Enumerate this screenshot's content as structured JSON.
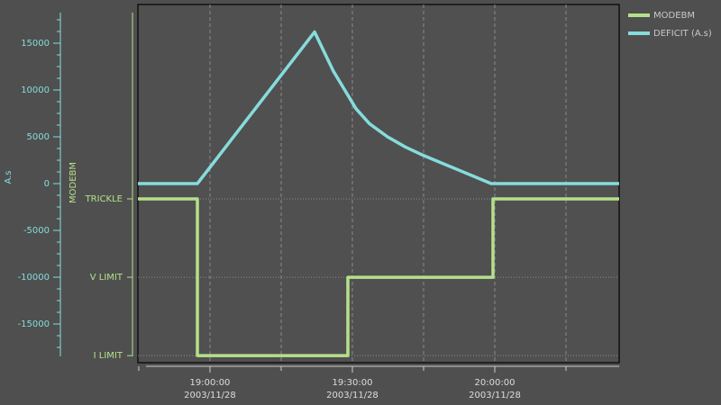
{
  "chart_data": {
    "type": "line",
    "ylabel": "A.s",
    "y2label": "MODEBM",
    "xlim": [
      "2003-11-28T18:44:49",
      "2003-11-28T20:26:12"
    ],
    "xticks": [
      {
        "value": "2003-11-28T19:00:00",
        "label": [
          "19:00:00",
          "2003/11/28"
        ]
      },
      {
        "value": "2003-11-28T19:30:00",
        "label": [
          "19:30:00",
          "2003/11/28"
        ]
      },
      {
        "value": "2003-11-28T20:00:00",
        "label": [
          "20:00:00",
          "2003/11/28"
        ]
      }
    ],
    "xminor_ticks": [
      "2003-11-28T18:45:00",
      "2003-11-28T19:15:00",
      "2003-11-28T19:45:00",
      "2003-11-28T20:15:00"
    ],
    "ylim": [
      -19135,
      19135
    ],
    "yticks": [
      15000,
      10000,
      5000,
      0,
      -5000,
      -10000,
      -15000
    ],
    "y2lim": [
      -0.09,
      4.48
    ],
    "y2ticks": [
      {
        "value": 2,
        "label": "TRICKLE"
      },
      {
        "value": 1,
        "label": "V LIMIT"
      },
      {
        "value": 0,
        "label": "I LIMIT"
      }
    ],
    "grid": true,
    "legend": "right",
    "series": [
      {
        "name": "MODEBM",
        "color": "#b4e08a",
        "axis": "y2",
        "x": [
          "2003-11-28T18:44:49",
          "2003-11-28T18:57:21",
          "2003-11-28T18:57:21",
          "2003-11-28T19:29:03",
          "2003-11-28T19:29:03",
          "2003-11-28T19:59:37",
          "2003-11-28T19:59:37",
          "2003-11-28T20:26:12"
        ],
        "values": [
          2,
          2,
          0,
          0,
          1,
          1,
          2,
          2
        ]
      },
      {
        "name": "DEFICIT (A.s)",
        "color": "#86dcdc",
        "x": [
          "2003-11-28T18:44:49",
          "2003-11-28T18:57:21",
          "2003-11-28T19:22:02",
          "2003-11-28T19:26:01",
          "2003-11-28T19:30:46",
          "2003-11-28T19:33:36",
          "2003-11-28T19:37:24",
          "2003-11-28T19:41:12",
          "2003-11-28T19:45:00",
          "2003-11-28T19:48:48",
          "2003-11-28T19:52:36",
          "2003-11-28T19:56:24",
          "2003-11-28T19:59:14",
          "2003-11-28T20:26:12"
        ],
        "values": [
          0,
          0,
          16200,
          12000,
          8000,
          6400,
          5000,
          3900,
          3000,
          2200,
          1400,
          600,
          0,
          0
        ]
      }
    ]
  }
}
